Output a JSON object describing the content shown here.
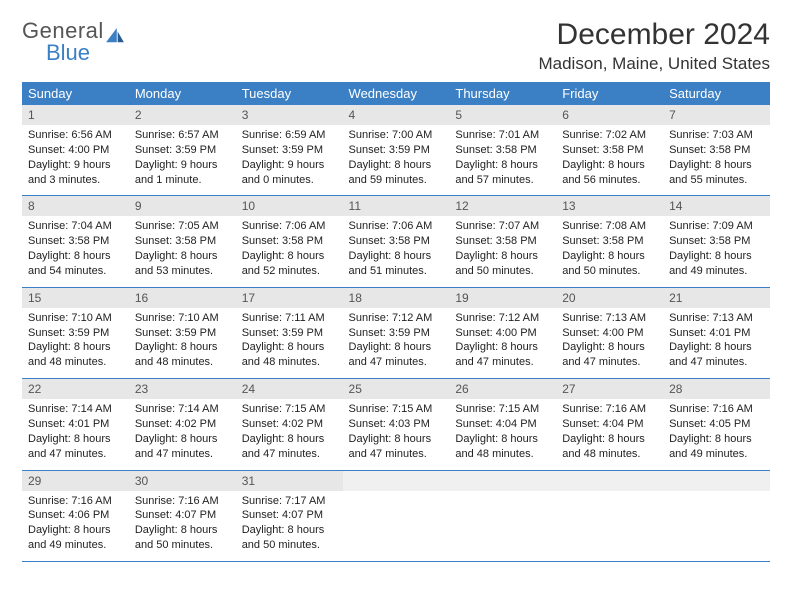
{
  "brand": {
    "part1": "General",
    "part2": "Blue",
    "text_color_gray": "#555555",
    "text_color_blue": "#3b7fc4"
  },
  "title": {
    "month": "December 2024",
    "location": "Madison, Maine, United States",
    "title_fontsize": 30,
    "loc_fontsize": 17
  },
  "calendar": {
    "type": "table",
    "header_bg": "#3b7fc4",
    "header_fg": "#ffffff",
    "daynum_bg": "#e7e7e7",
    "border_color": "#3b7fc4",
    "cell_fontsize": 11,
    "header_fontsize": 13,
    "columns": [
      "Sunday",
      "Monday",
      "Tuesday",
      "Wednesday",
      "Thursday",
      "Friday",
      "Saturday"
    ],
    "days": [
      {
        "n": "1",
        "sunrise": "6:56 AM",
        "sunset": "4:00 PM",
        "daylight": "9 hours and 3 minutes."
      },
      {
        "n": "2",
        "sunrise": "6:57 AM",
        "sunset": "3:59 PM",
        "daylight": "9 hours and 1 minute."
      },
      {
        "n": "3",
        "sunrise": "6:59 AM",
        "sunset": "3:59 PM",
        "daylight": "9 hours and 0 minutes."
      },
      {
        "n": "4",
        "sunrise": "7:00 AM",
        "sunset": "3:59 PM",
        "daylight": "8 hours and 59 minutes."
      },
      {
        "n": "5",
        "sunrise": "7:01 AM",
        "sunset": "3:58 PM",
        "daylight": "8 hours and 57 minutes."
      },
      {
        "n": "6",
        "sunrise": "7:02 AM",
        "sunset": "3:58 PM",
        "daylight": "8 hours and 56 minutes."
      },
      {
        "n": "7",
        "sunrise": "7:03 AM",
        "sunset": "3:58 PM",
        "daylight": "8 hours and 55 minutes."
      },
      {
        "n": "8",
        "sunrise": "7:04 AM",
        "sunset": "3:58 PM",
        "daylight": "8 hours and 54 minutes."
      },
      {
        "n": "9",
        "sunrise": "7:05 AM",
        "sunset": "3:58 PM",
        "daylight": "8 hours and 53 minutes."
      },
      {
        "n": "10",
        "sunrise": "7:06 AM",
        "sunset": "3:58 PM",
        "daylight": "8 hours and 52 minutes."
      },
      {
        "n": "11",
        "sunrise": "7:06 AM",
        "sunset": "3:58 PM",
        "daylight": "8 hours and 51 minutes."
      },
      {
        "n": "12",
        "sunrise": "7:07 AM",
        "sunset": "3:58 PM",
        "daylight": "8 hours and 50 minutes."
      },
      {
        "n": "13",
        "sunrise": "7:08 AM",
        "sunset": "3:58 PM",
        "daylight": "8 hours and 50 minutes."
      },
      {
        "n": "14",
        "sunrise": "7:09 AM",
        "sunset": "3:58 PM",
        "daylight": "8 hours and 49 minutes."
      },
      {
        "n": "15",
        "sunrise": "7:10 AM",
        "sunset": "3:59 PM",
        "daylight": "8 hours and 48 minutes."
      },
      {
        "n": "16",
        "sunrise": "7:10 AM",
        "sunset": "3:59 PM",
        "daylight": "8 hours and 48 minutes."
      },
      {
        "n": "17",
        "sunrise": "7:11 AM",
        "sunset": "3:59 PM",
        "daylight": "8 hours and 48 minutes."
      },
      {
        "n": "18",
        "sunrise": "7:12 AM",
        "sunset": "3:59 PM",
        "daylight": "8 hours and 47 minutes."
      },
      {
        "n": "19",
        "sunrise": "7:12 AM",
        "sunset": "4:00 PM",
        "daylight": "8 hours and 47 minutes."
      },
      {
        "n": "20",
        "sunrise": "7:13 AM",
        "sunset": "4:00 PM",
        "daylight": "8 hours and 47 minutes."
      },
      {
        "n": "21",
        "sunrise": "7:13 AM",
        "sunset": "4:01 PM",
        "daylight": "8 hours and 47 minutes."
      },
      {
        "n": "22",
        "sunrise": "7:14 AM",
        "sunset": "4:01 PM",
        "daylight": "8 hours and 47 minutes."
      },
      {
        "n": "23",
        "sunrise": "7:14 AM",
        "sunset": "4:02 PM",
        "daylight": "8 hours and 47 minutes."
      },
      {
        "n": "24",
        "sunrise": "7:15 AM",
        "sunset": "4:02 PM",
        "daylight": "8 hours and 47 minutes."
      },
      {
        "n": "25",
        "sunrise": "7:15 AM",
        "sunset": "4:03 PM",
        "daylight": "8 hours and 47 minutes."
      },
      {
        "n": "26",
        "sunrise": "7:15 AM",
        "sunset": "4:04 PM",
        "daylight": "8 hours and 48 minutes."
      },
      {
        "n": "27",
        "sunrise": "7:16 AM",
        "sunset": "4:04 PM",
        "daylight": "8 hours and 48 minutes."
      },
      {
        "n": "28",
        "sunrise": "7:16 AM",
        "sunset": "4:05 PM",
        "daylight": "8 hours and 49 minutes."
      },
      {
        "n": "29",
        "sunrise": "7:16 AM",
        "sunset": "4:06 PM",
        "daylight": "8 hours and 49 minutes."
      },
      {
        "n": "30",
        "sunrise": "7:16 AM",
        "sunset": "4:07 PM",
        "daylight": "8 hours and 50 minutes."
      },
      {
        "n": "31",
        "sunrise": "7:17 AM",
        "sunset": "4:07 PM",
        "daylight": "8 hours and 50 minutes."
      }
    ],
    "labels": {
      "sunrise": "Sunrise: ",
      "sunset": "Sunset: ",
      "daylight": "Daylight: "
    }
  }
}
